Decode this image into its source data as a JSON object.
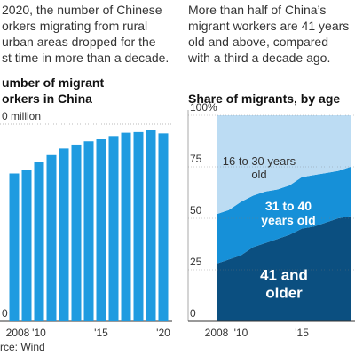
{
  "chart_data": [
    {
      "type": "bar",
      "text": [
        "2020, the number of Chinese",
        "orkers migrating from rural",
        "urban areas dropped for the",
        "st time in more than a decade."
      ],
      "title": [
        "umber of migrant",
        "orkers in China"
      ],
      "categories": [
        "2008",
        null,
        "'10",
        null,
        null,
        null,
        null,
        "'15",
        null,
        null,
        null,
        null,
        "'20"
      ],
      "values": [
        225,
        230,
        242,
        253,
        263,
        269,
        274,
        277,
        282,
        287,
        288,
        291,
        286
      ],
      "color": "#1f9be0",
      "ylim": [
        0,
        300
      ],
      "yticks": [
        {
          "value": 0,
          "label": "0"
        },
        {
          "value": 300,
          "label": "0 million"
        }
      ],
      "source": "rce: Wind"
    },
    {
      "type": "area",
      "text": [
        "More than half of China’s",
        "migrant workers are 41 years",
        "old and above, compared",
        "with a third a decade ago."
      ],
      "title": "Share of migrants, by age",
      "x": [
        2008,
        2009,
        2010,
        2011,
        2012,
        2013,
        2014,
        2015,
        2016,
        2017,
        2018,
        2019
      ],
      "xlim": [
        2008,
        2019
      ],
      "xticks": [
        {
          "value": 2008,
          "label": "2008"
        },
        {
          "value": 2010,
          "label": "'10"
        },
        {
          "value": 2015,
          "label": "'15"
        }
      ],
      "ylim": [
        0,
        100
      ],
      "yticks": [
        0,
        25,
        50,
        75,
        {
          "value": 100,
          "label": "100%"
        }
      ],
      "series": [
        {
          "name": "41 and older",
          "color": "#0b4f80",
          "values": [
            28,
            30,
            32,
            36,
            38,
            40,
            42,
            45,
            46,
            48,
            50,
            51
          ]
        },
        {
          "name": "31 to 40 years old",
          "color": "#1690d8",
          "values": [
            24,
            24,
            26,
            25,
            25,
            24,
            24,
            25,
            25,
            24,
            23,
            24
          ]
        },
        {
          "name": "16 to 30 years old",
          "color": "#bcdcf3",
          "values": [
            48,
            46,
            42,
            39,
            37,
            36,
            34,
            30,
            29,
            28,
            27,
            25
          ]
        }
      ]
    }
  ]
}
